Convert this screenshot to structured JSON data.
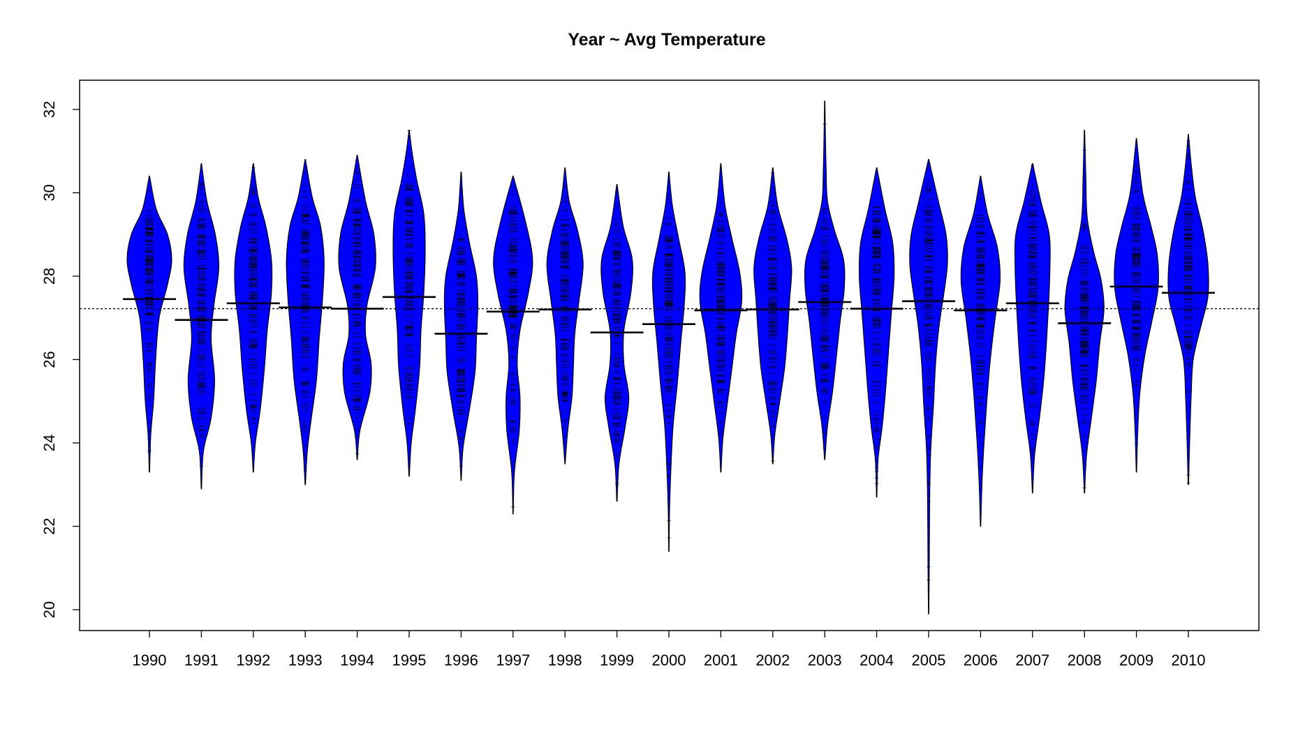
{
  "chart_data": {
    "type": "beanplot",
    "title": "Year ~ Avg Temperature",
    "xlabel": "",
    "ylabel": "",
    "categories": [
      "1990",
      "1991",
      "1992",
      "1993",
      "1994",
      "1995",
      "1996",
      "1997",
      "1998",
      "1999",
      "2000",
      "2001",
      "2002",
      "2003",
      "2004",
      "2005",
      "2006",
      "2007",
      "2008",
      "2009",
      "2010"
    ],
    "yticks": [
      20,
      22,
      24,
      26,
      28,
      30,
      32
    ],
    "ylim": [
      19.5,
      32.7
    ],
    "overall_mean": 27.22,
    "fill_color": "#0000ff",
    "series": [
      {
        "name": "1990",
        "mean": 27.45,
        "min": 23.3,
        "max": 30.4,
        "knots": [
          [
            23.3,
            0.3
          ],
          [
            24.2,
            2
          ],
          [
            25,
            6
          ],
          [
            26,
            9
          ],
          [
            27,
            14
          ],
          [
            27.8,
            26
          ],
          [
            28.4,
            32
          ],
          [
            29,
            26
          ],
          [
            29.6,
            10
          ],
          [
            30.4,
            0.3
          ]
        ]
      },
      {
        "name": "1991",
        "mean": 26.95,
        "min": 22.9,
        "max": 30.7,
        "knots": [
          [
            22.9,
            0.3
          ],
          [
            23.8,
            3
          ],
          [
            24.6,
            14
          ],
          [
            25.5,
            19
          ],
          [
            26.5,
            14
          ],
          [
            27.3,
            18
          ],
          [
            28.2,
            25
          ],
          [
            29,
            20
          ],
          [
            29.8,
            8
          ],
          [
            30.7,
            0.3
          ]
        ]
      },
      {
        "name": "1992",
        "mean": 27.35,
        "min": 23.3,
        "max": 30.7,
        "knots": [
          [
            23.3,
            0.3
          ],
          [
            24,
            3
          ],
          [
            24.8,
            10
          ],
          [
            25.8,
            16
          ],
          [
            26.7,
            20
          ],
          [
            27.6,
            26
          ],
          [
            28.4,
            26
          ],
          [
            29.2,
            18
          ],
          [
            29.9,
            7
          ],
          [
            30.7,
            0.3
          ]
        ]
      },
      {
        "name": "1993",
        "mean": 27.25,
        "min": 23.0,
        "max": 30.8,
        "knots": [
          [
            23,
            0.3
          ],
          [
            23.8,
            3
          ],
          [
            24.5,
            8
          ],
          [
            25.5,
            16
          ],
          [
            26.5,
            20
          ],
          [
            27.5,
            25
          ],
          [
            28.4,
            27
          ],
          [
            29.2,
            22
          ],
          [
            29.9,
            10
          ],
          [
            30.8,
            0.3
          ]
        ]
      },
      {
        "name": "1994",
        "mean": 27.22,
        "min": 23.6,
        "max": 30.9,
        "knots": [
          [
            23.6,
            0.3
          ],
          [
            24.3,
            4
          ],
          [
            25.2,
            18
          ],
          [
            25.9,
            20
          ],
          [
            26.6,
            12
          ],
          [
            27.3,
            14
          ],
          [
            28.2,
            26
          ],
          [
            29,
            24
          ],
          [
            29.8,
            12
          ],
          [
            30.9,
            0.3
          ]
        ]
      },
      {
        "name": "1995",
        "mean": 27.5,
        "min": 23.2,
        "max": 31.5,
        "knots": [
          [
            23.2,
            0.3
          ],
          [
            24,
            3
          ],
          [
            24.8,
            9
          ],
          [
            25.8,
            15
          ],
          [
            26.7,
            17
          ],
          [
            27.6,
            21
          ],
          [
            28.6,
            23
          ],
          [
            29.5,
            21
          ],
          [
            30.3,
            11
          ],
          [
            31,
            4
          ],
          [
            31.5,
            0.3
          ]
        ]
      },
      {
        "name": "1996",
        "mean": 26.62,
        "min": 23.1,
        "max": 30.5,
        "knots": [
          [
            23.1,
            0.3
          ],
          [
            23.9,
            3
          ],
          [
            24.8,
            12
          ],
          [
            25.7,
            20
          ],
          [
            26.5,
            22
          ],
          [
            27.3,
            24
          ],
          [
            28,
            22
          ],
          [
            28.8,
            12
          ],
          [
            29.6,
            4
          ],
          [
            30.5,
            0.3
          ]
        ]
      },
      {
        "name": "1997",
        "mean": 27.15,
        "min": 22.3,
        "max": 30.4,
        "knots": [
          [
            22.3,
            0.3
          ],
          [
            23.3,
            2
          ],
          [
            24.3,
            9
          ],
          [
            25.1,
            10
          ],
          [
            25.9,
            6
          ],
          [
            26.7,
            10
          ],
          [
            27.6,
            22
          ],
          [
            28.4,
            28
          ],
          [
            29.3,
            18
          ],
          [
            30.4,
            0.3
          ]
        ]
      },
      {
        "name": "1998",
        "mean": 27.2,
        "min": 23.5,
        "max": 30.6,
        "knots": [
          [
            23.5,
            0.3
          ],
          [
            24.3,
            4
          ],
          [
            25.1,
            10
          ],
          [
            25.8,
            12
          ],
          [
            26.6,
            14
          ],
          [
            27.4,
            20
          ],
          [
            28.3,
            26
          ],
          [
            29.1,
            18
          ],
          [
            29.8,
            6
          ],
          [
            30.6,
            0.3
          ]
        ]
      },
      {
        "name": "1999",
        "mean": 26.65,
        "min": 22.6,
        "max": 30.2,
        "knots": [
          [
            22.6,
            0.3
          ],
          [
            23.5,
            3
          ],
          [
            24.4,
            12
          ],
          [
            25.1,
            17
          ],
          [
            25.9,
            10
          ],
          [
            26.7,
            10
          ],
          [
            27.6,
            20
          ],
          [
            28.4,
            22
          ],
          [
            29.2,
            9
          ],
          [
            30.2,
            0.3
          ]
        ]
      },
      {
        "name": "2000",
        "mean": 26.85,
        "min": 21.4,
        "max": 30.5,
        "knots": [
          [
            21.4,
            0.3
          ],
          [
            22.4,
            1
          ],
          [
            23.4,
            3
          ],
          [
            24.4,
            6
          ],
          [
            25.4,
            12
          ],
          [
            26.4,
            17
          ],
          [
            27.3,
            22
          ],
          [
            28.1,
            23
          ],
          [
            28.9,
            14
          ],
          [
            29.7,
            5
          ],
          [
            30.5,
            0.3
          ]
        ]
      },
      {
        "name": "2001",
        "mean": 27.18,
        "min": 23.3,
        "max": 30.7,
        "knots": [
          [
            23.3,
            0.3
          ],
          [
            24.1,
            3
          ],
          [
            24.9,
            9
          ],
          [
            25.8,
            16
          ],
          [
            26.6,
            22
          ],
          [
            27.4,
            30
          ],
          [
            28.1,
            27
          ],
          [
            28.9,
            16
          ],
          [
            29.7,
            6
          ],
          [
            30.7,
            0.3
          ]
        ]
      },
      {
        "name": "2002",
        "mean": 27.2,
        "min": 23.5,
        "max": 30.6,
        "knots": [
          [
            23.5,
            0.3
          ],
          [
            24.2,
            3
          ],
          [
            25,
            10
          ],
          [
            25.8,
            17
          ],
          [
            26.6,
            21
          ],
          [
            27.4,
            24
          ],
          [
            28.2,
            27
          ],
          [
            28.9,
            20
          ],
          [
            29.7,
            7
          ],
          [
            30.6,
            0.3
          ]
        ]
      },
      {
        "name": "2003",
        "mean": 27.38,
        "min": 23.6,
        "max": 32.2,
        "knots": [
          [
            23.6,
            0.3
          ],
          [
            24.4,
            4
          ],
          [
            25.2,
            11
          ],
          [
            26.1,
            17
          ],
          [
            26.9,
            22
          ],
          [
            27.7,
            28
          ],
          [
            28.4,
            27
          ],
          [
            29.1,
            14
          ],
          [
            29.8,
            4
          ],
          [
            30.6,
            2
          ],
          [
            31.4,
            1
          ],
          [
            32.2,
            0.3
          ]
        ]
      },
      {
        "name": "2004",
        "mean": 27.22,
        "min": 22.7,
        "max": 30.6,
        "knots": [
          [
            22.7,
            0.3
          ],
          [
            23.6,
            2
          ],
          [
            24.4,
            8
          ],
          [
            25.3,
            13
          ],
          [
            26.2,
            17
          ],
          [
            27.1,
            21
          ],
          [
            28,
            25
          ],
          [
            28.8,
            23
          ],
          [
            29.6,
            12
          ],
          [
            30.6,
            0.3
          ]
        ]
      },
      {
        "name": "2005",
        "mean": 27.4,
        "min": 19.9,
        "max": 30.8,
        "knots": [
          [
            19.9,
            0.3
          ],
          [
            21.2,
            1
          ],
          [
            22.6,
            1.5
          ],
          [
            23.8,
            3
          ],
          [
            24.9,
            7
          ],
          [
            25.9,
            10
          ],
          [
            26.8,
            15
          ],
          [
            27.6,
            22
          ],
          [
            28.3,
            27
          ],
          [
            29,
            25
          ],
          [
            29.8,
            14
          ],
          [
            30.8,
            0.3
          ]
        ]
      },
      {
        "name": "2006",
        "mean": 27.18,
        "min": 22.0,
        "max": 30.4,
        "knots": [
          [
            22,
            0.3
          ],
          [
            23,
            2
          ],
          [
            24,
            5
          ],
          [
            25,
            9
          ],
          [
            26,
            14
          ],
          [
            27,
            21
          ],
          [
            27.9,
            28
          ],
          [
            28.7,
            24
          ],
          [
            29.5,
            10
          ],
          [
            30.4,
            0.3
          ]
        ]
      },
      {
        "name": "2007",
        "mean": 27.35,
        "min": 22.8,
        "max": 30.7,
        "knots": [
          [
            22.8,
            0.3
          ],
          [
            23.7,
            3
          ],
          [
            24.6,
            10
          ],
          [
            25.5,
            16
          ],
          [
            26.4,
            20
          ],
          [
            27.3,
            23
          ],
          [
            28.2,
            25
          ],
          [
            29,
            24
          ],
          [
            29.8,
            12
          ],
          [
            30.7,
            0.3
          ]
        ]
      },
      {
        "name": "2008",
        "mean": 26.87,
        "min": 22.8,
        "max": 31.5,
        "knots": [
          [
            22.8,
            0.3
          ],
          [
            23.7,
            3
          ],
          [
            24.6,
            10
          ],
          [
            25.5,
            17
          ],
          [
            26.4,
            22
          ],
          [
            27.2,
            28
          ],
          [
            27.9,
            24
          ],
          [
            28.6,
            13
          ],
          [
            29.4,
            4
          ],
          [
            30.4,
            2
          ],
          [
            31.5,
            0.3
          ]
        ]
      },
      {
        "name": "2009",
        "mean": 27.75,
        "min": 23.3,
        "max": 31.3,
        "knots": [
          [
            23.3,
            0.3
          ],
          [
            24.3,
            2
          ],
          [
            25.2,
            5
          ],
          [
            26.1,
            12
          ],
          [
            26.9,
            22
          ],
          [
            27.7,
            31
          ],
          [
            28.5,
            30
          ],
          [
            29.2,
            21
          ],
          [
            30,
            9
          ],
          [
            31.3,
            0.3
          ]
        ]
      },
      {
        "name": "2010",
        "mean": 27.6,
        "min": 23.0,
        "max": 31.4,
        "knots": [
          [
            23,
            0.3
          ],
          [
            24.1,
            2
          ],
          [
            25.1,
            4
          ],
          [
            26,
            7
          ],
          [
            26.8,
            18
          ],
          [
            27.5,
            28
          ],
          [
            28.3,
            28
          ],
          [
            29.1,
            21
          ],
          [
            29.9,
            10
          ],
          [
            30.7,
            4
          ],
          [
            31.4,
            0.3
          ]
        ]
      }
    ]
  }
}
